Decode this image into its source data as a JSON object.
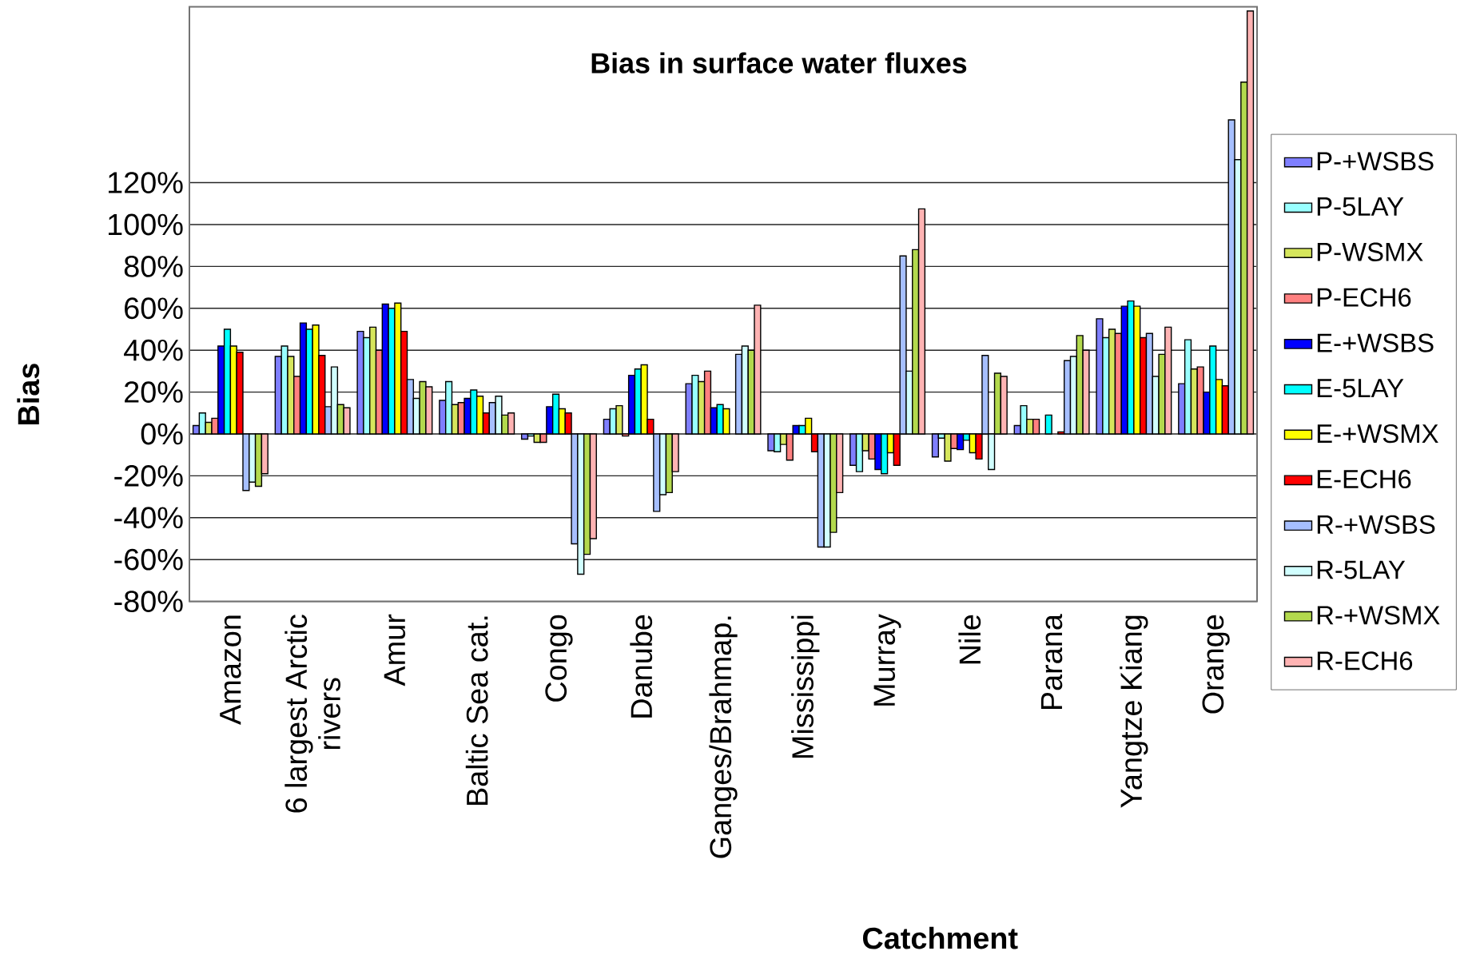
{
  "chart_data": {
    "type": "bar",
    "title": "Bias in surface water fluxes",
    "xlabel": "Catchment",
    "ylabel": "Bias",
    "categories": [
      "Amazon",
      "6 largest Arctic rivers",
      "Amur",
      "Baltic Sea cat.",
      "Congo",
      "Danube",
      "Ganges/Brahmap.",
      "Mississippi",
      "Murray",
      "Nile",
      "Parana",
      "Yangtze Kiang",
      "Orange"
    ],
    "series": [
      {
        "name": "P-+WSBS",
        "color": "#7f7fff",
        "values": [
          4,
          37,
          49,
          16,
          -2.5,
          7,
          24,
          -8,
          -15,
          -11,
          4,
          55,
          24
        ]
      },
      {
        "name": "P-5LAY",
        "color": "#99ffff",
        "values": [
          10,
          42,
          46,
          25,
          -1,
          12,
          28,
          -8.5,
          -18,
          -2,
          13.5,
          46,
          45
        ]
      },
      {
        "name": "P-WSMX",
        "color": "#d6e65c",
        "values": [
          5.5,
          37,
          51,
          14,
          -4,
          13.5,
          25,
          -5,
          -8,
          -13,
          7,
          50,
          31
        ]
      },
      {
        "name": "P-ECH6",
        "color": "#ff8080",
        "values": [
          7.5,
          27.5,
          40,
          15,
          -4,
          -1,
          30,
          -12.5,
          -12,
          -7,
          7,
          48,
          32
        ]
      },
      {
        "name": "E-+WSBS",
        "color": "#0000ff",
        "values": [
          42,
          53,
          62,
          17,
          13,
          28,
          12.5,
          4,
          -17,
          -7.5,
          null,
          61,
          20
        ]
      },
      {
        "name": "E-5LAY",
        "color": "#00ffff",
        "values": [
          50,
          50,
          60,
          21,
          19,
          31,
          14,
          4,
          -19,
          -3,
          9,
          63.5,
          42
        ]
      },
      {
        "name": "E-+WSMX",
        "color": "#ffff00",
        "values": [
          42,
          52,
          62.5,
          18,
          12,
          33,
          12,
          7.5,
          -9,
          -9,
          null,
          61,
          26
        ]
      },
      {
        "name": "E-ECH6",
        "color": "#ff0000",
        "values": [
          39,
          37.5,
          49,
          10,
          10,
          7,
          null,
          -8.5,
          -15,
          -12,
          1,
          46,
          23
        ]
      },
      {
        "name": "R-+WSBS",
        "color": "#a6bfff",
        "values": [
          -27,
          13,
          26,
          15,
          -52.5,
          -37,
          38,
          -54,
          85,
          37.5,
          35,
          48,
          150
        ]
      },
      {
        "name": "R-5LAY",
        "color": "#d1ffff",
        "values": [
          -23,
          32,
          17,
          18,
          -67,
          -29,
          42,
          -54,
          30,
          -17,
          37,
          27.5,
          131
        ]
      },
      {
        "name": "R-+WSMX",
        "color": "#b3d94d",
        "values": [
          -25,
          14,
          25,
          9,
          -57.5,
          -28,
          40,
          -47,
          88,
          29,
          47,
          38,
          168
        ]
      },
      {
        "name": "R-ECH6",
        "color": "#ffb3b3",
        "values": [
          -19,
          12.5,
          22.5,
          10,
          -50,
          -18,
          61.5,
          -28,
          107.5,
          27.5,
          40,
          51,
          202
        ]
      }
    ],
    "ylim": [
      -80,
      204
    ],
    "yticks": [
      {
        "value": -80,
        "label": "-80%"
      },
      {
        "value": -60,
        "label": "-60%"
      },
      {
        "value": -40,
        "label": "-40%"
      },
      {
        "value": -20,
        "label": "-20%"
      },
      {
        "value": 0,
        "label": "0%"
      },
      {
        "value": 20,
        "label": "20%"
      },
      {
        "value": 40,
        "label": "40%"
      },
      {
        "value": 60,
        "label": "60%"
      },
      {
        "value": 80,
        "label": "80%"
      },
      {
        "value": 100,
        "label": "100%"
      },
      {
        "value": 120,
        "label": "120%"
      }
    ],
    "grid": "y",
    "legend": "right"
  }
}
